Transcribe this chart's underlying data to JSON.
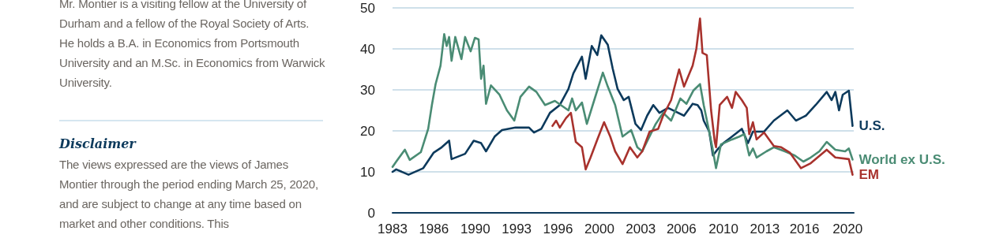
{
  "chart_data": {
    "type": "line",
    "annotations": [
      "Mr. Montier is a visiting fellow at the University of Durham and a fellow of the Royal Society of Arts. He holds a B.A. in Economics from Portsmouth University and an M.Sc. in Economics from Warwick University.",
      "Disclaimer",
      "The views expressed are the views of James Montier through the period ending March 25, 2020, and are subject to change at any time based on market and other conditions. This"
    ],
    "xlim": [
      1983,
      2020.5
    ],
    "xticks": [
      {
        "value": 1983,
        "label": "1983"
      },
      {
        "value": 1986.36,
        "label": "1986"
      },
      {
        "value": 1989.73,
        "label": "1990"
      },
      {
        "value": 1993.09,
        "label": "1993"
      },
      {
        "value": 1996.45,
        "label": "1996"
      },
      {
        "value": 1999.82,
        "label": "2000"
      },
      {
        "value": 2003.18,
        "label": "2003"
      },
      {
        "value": 2006.49,
        "label": "2006"
      },
      {
        "value": 2009.91,
        "label": "2010"
      },
      {
        "value": 2013.27,
        "label": "2013"
      },
      {
        "value": 2016.49,
        "label": "2016"
      },
      {
        "value": 2020,
        "label": "2020"
      }
    ],
    "ylim": [
      0,
      50
    ],
    "yticks": [
      0,
      10,
      20,
      30,
      40,
      50
    ],
    "grid": "y",
    "marker": "none",
    "line_style": "solid",
    "series": [
      {
        "name": "U.S.",
        "color": "#0d3a5c",
        "x": [
          1983.0,
          1983.3,
          1984.3,
          1985.5,
          1986.35,
          1987.0,
          1987.6,
          1987.8,
          1988.9,
          1989.6,
          1990.2,
          1990.6,
          1991.3,
          1991.9,
          1993.0,
          1994.1,
          1994.5,
          1995.1,
          1995.8,
          1996.6,
          1997.3,
          1997.7,
          1998.4,
          1998.7,
          1999.2,
          1999.65,
          1999.97,
          2000.5,
          2000.9,
          2001.3,
          2001.8,
          2002.2,
          2002.75,
          2003.2,
          2003.7,
          2004.2,
          2004.7,
          2005.4,
          2006.7,
          2007.4,
          2007.8,
          2008.1,
          2008.3,
          2008.75,
          2009.05,
          2009.4,
          2009.9,
          2010.6,
          2011.4,
          2011.9,
          2012.3,
          2013.2,
          2014.0,
          2015.1,
          2015.8,
          2016.6,
          2017.4,
          2018.3,
          2018.7,
          2019.0,
          2019.3,
          2019.6,
          2020.1,
          2020.4
        ],
        "values": [
          10.0,
          10.6,
          9.3,
          10.9,
          14.7,
          16.0,
          17.6,
          13.1,
          14.4,
          17.6,
          17.0,
          15.0,
          18.6,
          20.2,
          20.8,
          20.8,
          19.6,
          20.5,
          24.4,
          26.3,
          30.2,
          34.0,
          38.1,
          32.7,
          40.7,
          38.5,
          43.3,
          41.0,
          35.2,
          30.2,
          27.5,
          28.3,
          21.7,
          20.2,
          23.7,
          26.3,
          24.4,
          25.6,
          23.7,
          26.6,
          26.3,
          25.0,
          22.5,
          19.8,
          14.0,
          15.4,
          17.0,
          18.6,
          20.5,
          17.0,
          19.8,
          19.8,
          22.5,
          25.0,
          22.5,
          23.7,
          26.3,
          29.5,
          27.5,
          29.5,
          25.0,
          28.8,
          29.8,
          21.2
        ]
      },
      {
        "name": "World ex U.S.",
        "color": "#4a8c74",
        "x": [
          1983.0,
          1983.3,
          1984.0,
          1984.4,
          1985.3,
          1985.9,
          1986.2,
          1986.5,
          1986.9,
          1987.2,
          1987.4,
          1987.6,
          1987.8,
          1988.1,
          1988.6,
          1988.9,
          1989.35,
          1989.7,
          1990.0,
          1990.2,
          1990.4,
          1990.6,
          1991.0,
          1991.7,
          1992.3,
          1992.9,
          1993.4,
          1994.1,
          1994.7,
          1995.4,
          1996.2,
          1997.3,
          1997.6,
          1997.9,
          1998.4,
          1998.8,
          1999.4,
          2000.1,
          2000.5,
          2001.1,
          2001.7,
          2002.4,
          2002.9,
          2003.3,
          2004.4,
          2005.0,
          2005.65,
          2006.4,
          2006.9,
          2007.45,
          2008.0,
          2008.3,
          2008.65,
          2009.0,
          2009.3,
          2009.7,
          2010.6,
          2011.2,
          2011.6,
          2012.0,
          2012.3,
          2012.6,
          2013.4,
          2014.0,
          2014.9,
          2015.7,
          2016.4,
          2017.0,
          2017.7,
          2018.3,
          2019.0,
          2019.8,
          2020.1,
          2020.4
        ],
        "values": [
          11.2,
          12.5,
          15.4,
          12.9,
          14.8,
          20.5,
          26.3,
          31.4,
          35.9,
          43.6,
          40.7,
          42.9,
          37.1,
          42.9,
          37.5,
          42.9,
          39.4,
          42.7,
          42.3,
          32.7,
          35.9,
          26.6,
          31.1,
          28.8,
          25.0,
          22.5,
          28.3,
          30.8,
          29.5,
          26.3,
          27.3,
          25.0,
          27.9,
          25.0,
          26.9,
          21.7,
          27.5,
          34.2,
          30.8,
          26.3,
          18.6,
          20.2,
          16.0,
          15.0,
          21.7,
          24.4,
          22.5,
          27.9,
          26.6,
          29.8,
          31.4,
          26.3,
          21.2,
          16.0,
          10.9,
          16.7,
          17.9,
          18.6,
          19.2,
          14.0,
          15.7,
          13.5,
          15.0,
          16.0,
          15.0,
          14.0,
          12.5,
          13.5,
          15.0,
          17.3,
          15.4,
          15.0,
          15.7,
          13.0
        ]
      },
      {
        "name": "EM",
        "color": "#a8322d",
        "x": [
          1996.0,
          1996.3,
          1996.6,
          1997.1,
          1997.5,
          1997.9,
          1998.4,
          1998.7,
          1999.1,
          1999.65,
          2000.2,
          2000.7,
          2001.1,
          2001.7,
          2002.3,
          2002.9,
          2003.3,
          2003.9,
          2004.6,
          2005.0,
          2005.65,
          2006.3,
          2006.7,
          2007.4,
          2007.7,
          2008.0,
          2008.2,
          2008.55,
          2008.9,
          2009.2,
          2009.3,
          2009.6,
          2010.2,
          2010.6,
          2010.9,
          2011.4,
          2011.8,
          2012.0,
          2012.3,
          2012.6,
          2013.2,
          2014.0,
          2014.6,
          2015.3,
          2016.2,
          2017.0,
          2018.3,
          2019.0,
          2020.1,
          2020.4
        ],
        "values": [
          21.2,
          22.5,
          20.8,
          23.1,
          24.4,
          17.3,
          16.0,
          10.6,
          13.5,
          17.9,
          22.1,
          18.6,
          15.0,
          11.9,
          16.0,
          13.5,
          15.0,
          19.8,
          20.5,
          23.7,
          27.5,
          35.0,
          30.8,
          35.9,
          40.0,
          47.4,
          39.0,
          38.5,
          25.0,
          17.3,
          16.0,
          26.3,
          28.3,
          25.6,
          29.5,
          27.5,
          25.6,
          19.2,
          22.1,
          17.9,
          19.6,
          16.3,
          16.0,
          14.7,
          10.9,
          12.1,
          15.4,
          13.5,
          13.1,
          9.3
        ]
      }
    ]
  }
}
